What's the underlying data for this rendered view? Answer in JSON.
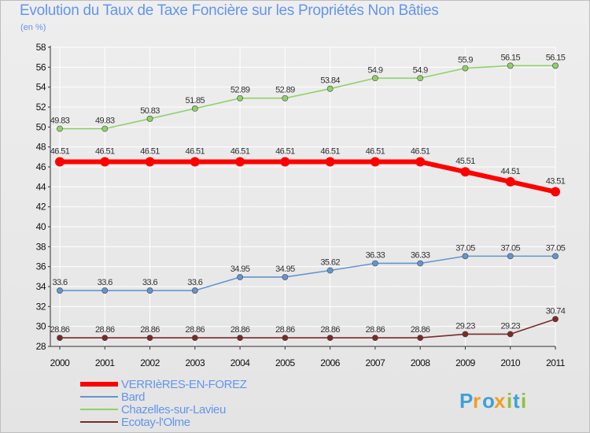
{
  "chart_data": {
    "type": "line",
    "title": "Evolution du Taux de Taxe Foncière sur les Propriétés Non Bâties",
    "unit": "(en %)",
    "xlabel": "",
    "ylabel": "",
    "categories": [
      "2000",
      "2001",
      "2002",
      "2003",
      "2004",
      "2005",
      "2006",
      "2007",
      "2008",
      "2009",
      "2010",
      "2011"
    ],
    "ylim": [
      28,
      58
    ],
    "yticks": [
      28,
      30,
      32,
      34,
      36,
      38,
      40,
      42,
      44,
      46,
      48,
      50,
      52,
      54,
      56,
      58
    ],
    "series": [
      {
        "name": "VERRIèRES-EN-FOREZ",
        "color": "#ff0000",
        "values": [
          46.51,
          46.51,
          46.51,
          46.51,
          46.51,
          46.51,
          46.51,
          46.51,
          46.51,
          45.51,
          44.51,
          43.51
        ]
      },
      {
        "name": "Bard",
        "color": "#6495cd",
        "values": [
          33.6,
          33.6,
          33.6,
          33.6,
          34.95,
          34.95,
          35.62,
          36.33,
          36.33,
          37.05,
          37.05,
          37.05
        ]
      },
      {
        "name": "Chazelles-sur-Lavieu",
        "color": "#8fd16a",
        "values": [
          49.83,
          49.83,
          50.83,
          51.85,
          52.89,
          52.89,
          53.84,
          54.9,
          54.9,
          55.9,
          56.15,
          56.15
        ]
      },
      {
        "name": "Ecotay-l'Olme",
        "color": "#7b2a2a",
        "values": [
          28.86,
          28.86,
          28.86,
          28.86,
          28.86,
          28.86,
          28.86,
          28.86,
          28.86,
          29.23,
          29.23,
          30.74
        ]
      }
    ],
    "data_labels": [
      [
        "46.51",
        "46.51",
        "46.51",
        "46.51",
        "46.51",
        "46.51",
        "46.51",
        "46.51",
        "46.51",
        "45.51",
        "44.51",
        "43.51"
      ],
      [
        "33.6",
        "33.6",
        "33.6",
        "33.6",
        "34.95",
        "34.95",
        "35.62",
        "36.33",
        "36.33",
        "37.05",
        "37.05",
        "37.05"
      ],
      [
        "49.83",
        "49.83",
        "50.83",
        "51.85",
        "52.89",
        "52.89",
        "53.84",
        "54.9",
        "54.9",
        "55.9",
        "56.15",
        "56.15"
      ],
      [
        "28.86",
        "28.86",
        "28.86",
        "28.86",
        "28.86",
        "28.86",
        "28.86",
        "28.86",
        "28.86",
        "29.23",
        "29.23",
        "30.74"
      ]
    ],
    "legend_position": "bottom-left"
  },
  "brand": {
    "letters": [
      "P",
      "r",
      "o",
      "x",
      "i",
      "t",
      "i"
    ],
    "colors": [
      "#3fa0d8",
      "#f0a020",
      "#3fa0d8",
      "#f0a020",
      "#8fc03f",
      "#3fa0d8",
      "#8fc03f"
    ]
  }
}
